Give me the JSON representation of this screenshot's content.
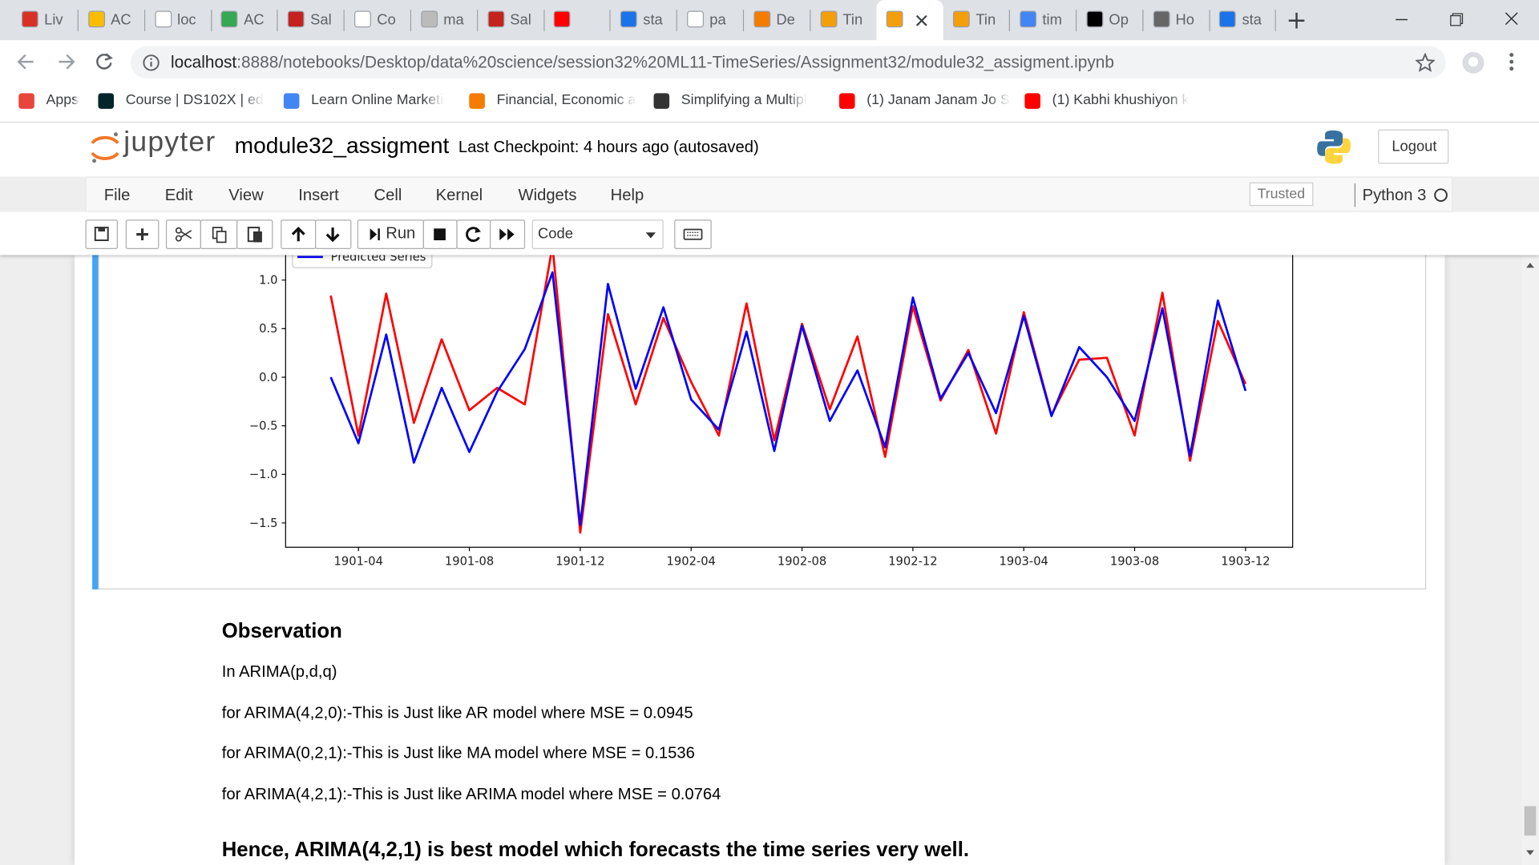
{
  "browser": {
    "tabs": [
      "Liv",
      "AC",
      "loc",
      "AC",
      "Sal",
      "Co",
      "ma",
      "Sal",
      "sta",
      "pa",
      "De",
      "Tin",
      "Tin",
      "tim",
      "Op",
      "Ho",
      "sta"
    ],
    "url": {
      "host": "localhost",
      "path": ":8888/notebooks/Desktop/data%20science/session32%20ML11-TimeSeries/Assignment32/module32_assigment.ipynb"
    },
    "bookmarks": [
      "Apps",
      "Course | DS102X | ed",
      "Learn Online Marketi",
      "Financial, Economic a",
      "Simplifying a Multipl",
      "(1) Janam Janam Jo S",
      "(1) Kabhi khushiyon k"
    ]
  },
  "jupyter": {
    "logo": "jupyter",
    "notebook_name": "module32_assigment",
    "checkpoint": "Last Checkpoint: 4 hours ago",
    "autosave": "(autosaved)",
    "logout": "Logout",
    "menu": [
      "File",
      "Edit",
      "View",
      "Insert",
      "Cell",
      "Kernel",
      "Widgets",
      "Help"
    ],
    "trusted": "Trusted",
    "kernel": "Python 3",
    "run": "Run",
    "cell_type": "Code"
  },
  "chart_data": {
    "type": "line",
    "x": [
      "1901-03",
      "1901-04",
      "1901-05",
      "1901-06",
      "1901-07",
      "1901-08",
      "1901-09",
      "1901-10",
      "1901-11",
      "1901-12",
      "1902-01",
      "1902-02",
      "1902-03",
      "1902-04",
      "1902-05",
      "1902-06",
      "1902-07",
      "1902-08",
      "1902-09",
      "1902-10",
      "1902-11",
      "1902-12",
      "1903-01",
      "1903-02",
      "1903-03",
      "1903-04",
      "1903-05",
      "1903-06",
      "1903-07",
      "1903-08",
      "1903-09",
      "1903-10",
      "1903-11",
      "1903-12"
    ],
    "series": [
      {
        "color": "#ff0000",
        "values": [
          0.84,
          -0.6,
          0.86,
          -0.47,
          0.39,
          -0.34,
          -0.11,
          -0.28,
          1.35,
          -1.6,
          0.65,
          -0.28,
          0.61,
          -0.05,
          -0.6,
          0.76,
          -0.65,
          0.55,
          -0.33,
          0.42,
          -0.82,
          0.73,
          -0.24,
          0.28,
          -0.58,
          0.67,
          -0.39,
          0.18,
          0.2,
          -0.6,
          0.87,
          -0.86,
          0.58,
          -0.07
        ]
      },
      {
        "name": "Predicted Series",
        "color": "#0000ff",
        "values": [
          0.0,
          -0.68,
          0.44,
          -0.88,
          -0.11,
          -0.77,
          -0.15,
          0.29,
          1.08,
          -1.52,
          0.96,
          -0.12,
          0.72,
          -0.23,
          -0.54,
          0.47,
          -0.76,
          0.53,
          -0.45,
          0.07,
          -0.72,
          0.82,
          -0.22,
          0.25,
          -0.37,
          0.63,
          -0.4,
          0.31,
          0.0,
          -0.45,
          0.71,
          -0.81,
          0.79,
          -0.14
        ]
      }
    ],
    "ylim": [
      -1.75,
      1.45
    ],
    "yticks": [
      {
        "value": -1.5,
        "label": "−1.5"
      },
      {
        "value": -1.0,
        "label": "−1.0"
      },
      {
        "value": -0.5,
        "label": "−0.5"
      },
      {
        "value": 0,
        "label": "0.0"
      },
      0.5,
      {
        "value": 1,
        "label": "1.0"
      }
    ],
    "xticks": [
      "1901-04",
      "1901-08",
      "1901-12",
      "1902-04",
      "1902-08",
      "1902-12",
      "1903-04",
      "1903-08",
      "1903-12"
    ]
  },
  "markdown": {
    "heading": "Observation",
    "paragraphs": [
      "In ARIMA(p,d,q)",
      "for ARIMA(4,2,0):-This is Just like AR model where MSE = 0.0945",
      "for ARIMA(0,2,1):-This is Just like MA model where MSE = 0.1536",
      "for ARIMA(4,2,1):-This is Just like ARIMA model where MSE = 0.0764"
    ],
    "conclusion": "Hence, ARIMA(4,2,1) is best model which forecasts the time series very well."
  }
}
